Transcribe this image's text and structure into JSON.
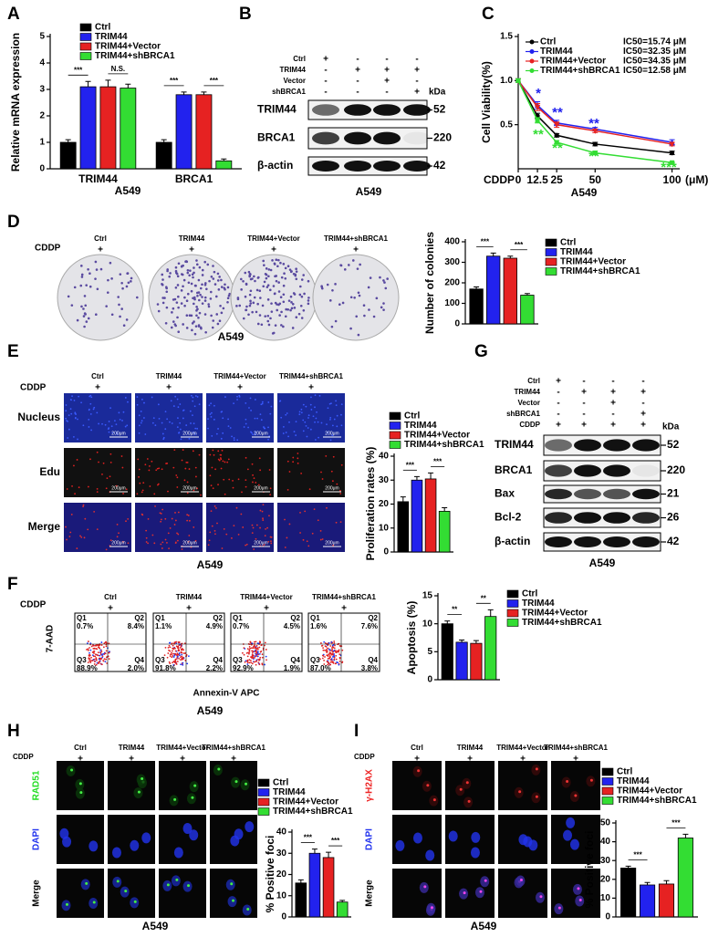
{
  "figure": {
    "panel_labels": [
      "A",
      "B",
      "C",
      "D",
      "E",
      "F",
      "G",
      "H",
      "I"
    ],
    "cell_line": "A549",
    "cddp": "CDDP",
    "plus": "+",
    "groups": [
      "Ctrl",
      "TRIM44",
      "TRIM44+Vector",
      "TRIM44+shBRCA1"
    ],
    "kda": "kDa",
    "blot_B": {
      "conditions": [
        "Ctrl",
        "TRIM44",
        "Vector",
        "shBRCA1"
      ],
      "signs": [
        [
          "+",
          "-",
          "-",
          "-"
        ],
        [
          "-",
          "+",
          "+",
          "+"
        ],
        [
          "-",
          "-",
          "+",
          "-"
        ],
        [
          "-",
          "-",
          "-",
          "+"
        ]
      ],
      "proteins": [
        "TRIM44",
        "BRCA1",
        "β-actin"
      ],
      "sizes": [
        "52",
        "220",
        "42"
      ]
    },
    "blot_G": {
      "conditions": [
        "Ctrl",
        "TRIM44",
        "Vector",
        "shBRCA1",
        "CDDP"
      ],
      "signs": [
        [
          "+",
          "-",
          "-",
          "-"
        ],
        [
          "-",
          "+",
          "+",
          "+"
        ],
        [
          "-",
          "-",
          "+",
          "-"
        ],
        [
          "-",
          "-",
          "-",
          "+"
        ],
        [
          "+",
          "+",
          "+",
          "+"
        ]
      ],
      "proteins": [
        "TRIM44",
        "BRCA1",
        "Bax",
        "Bcl-2",
        "β-actin"
      ],
      "sizes": [
        "52",
        "220",
        "21",
        "26",
        "42"
      ]
    },
    "edu_rows": [
      "Nucleus",
      "Edu",
      "Merge"
    ],
    "scale_bar": "200μm",
    "flow": {
      "y_axis": "7-AAD",
      "x_axis": "Annexin-V APC",
      "quadrants": [
        [
          [
            "Q1",
            "0.7%"
          ],
          [
            "Q2",
            "8.4%"
          ],
          [
            "Q3",
            "88.9%"
          ],
          [
            "Q4",
            "2.0%"
          ]
        ],
        [
          [
            "Q1",
            "1.1%"
          ],
          [
            "Q2",
            "4.9%"
          ],
          [
            "Q3",
            "91.8%"
          ],
          [
            "Q4",
            "2.2%"
          ]
        ],
        [
          [
            "Q1",
            "0.7%"
          ],
          [
            "Q2",
            "4.5%"
          ],
          [
            "Q3",
            "92.9%"
          ],
          [
            "Q4",
            "1.9%"
          ]
        ],
        [
          [
            "Q1",
            "1.6%"
          ],
          [
            "Q2",
            "7.6%"
          ],
          [
            "Q3",
            "87.0%"
          ],
          [
            "Q4",
            "3.8%"
          ]
        ]
      ]
    },
    "if_h_rows": [
      "RAD51",
      "DAPI",
      "Merge"
    ],
    "if_i_rows": [
      "γ-H2AX",
      "DAPI",
      "Merge"
    ]
  },
  "chart_data": [
    {
      "type": "bar",
      "y_label": "Relative mRNA expression",
      "x_label": "A549",
      "categories": [
        "TRIM44",
        "BRCA1"
      ],
      "ylim": [
        0,
        5
      ],
      "yticks": [
        0,
        1,
        2,
        3,
        4,
        5
      ],
      "series": [
        {
          "name": "Ctrl",
          "color": "#000000",
          "values": [
            1,
            1
          ],
          "errors": [
            0.1,
            0.1
          ]
        },
        {
          "name": "TRIM44",
          "color": "#2222ee",
          "values": [
            3.1,
            2.8
          ],
          "errors": [
            0.2,
            0.1
          ]
        },
        {
          "name": "TRIM44+Vector",
          "color": "#e62222",
          "values": [
            3.1,
            2.8
          ],
          "errors": [
            0.25,
            0.1
          ]
        },
        {
          "name": "TRIM44+shBRCA1",
          "color": "#33dd33",
          "values": [
            3.05,
            0.3
          ],
          "errors": [
            0.15,
            0.07
          ]
        }
      ],
      "annotations": [
        "***",
        "N.S.",
        "***",
        "***"
      ]
    },
    {
      "type": "line",
      "y_label": "Cell Viability(%)",
      "x_label": "A549",
      "x_prefix": "CDDP",
      "x_unit": "(μM)",
      "x": [
        0,
        12.5,
        25,
        50,
        100
      ],
      "xlim": [
        0,
        105
      ],
      "xticks": [
        0,
        12.5,
        25,
        50,
        100
      ],
      "ylim": [
        0,
        1.5
      ],
      "yticks": [
        0.5,
        {
          "value": 1,
          "label": "1.0"
        },
        1.5
      ],
      "series": [
        {
          "name": "Ctrl",
          "color": "#000000",
          "marker": "circle",
          "ic50": "IC50=15.74 μM",
          "values": [
            1,
            0.6,
            0.38,
            0.28,
            0.18
          ],
          "errors": [
            0.02,
            0.03,
            0.02,
            0.02,
            0.02
          ]
        },
        {
          "name": "TRIM44",
          "color": "#2222ee",
          "marker": "triangle-up",
          "ic50": "IC50=32.35 μM",
          "values": [
            1,
            0.72,
            0.52,
            0.45,
            0.3
          ],
          "errors": [
            0.02,
            0.04,
            0.03,
            0.02,
            0.03
          ]
        },
        {
          "name": "TRIM44+Vector",
          "color": "#e62222",
          "marker": "triangle-down",
          "ic50": "IC50=34.35 μM",
          "values": [
            1,
            0.7,
            0.5,
            0.43,
            0.28
          ],
          "errors": [
            0.02,
            0.04,
            0.03,
            0.02,
            0.02
          ]
        },
        {
          "name": "TRIM44+shBRCA1",
          "color": "#33dd33",
          "marker": "square",
          "ic50": "IC50=12.58 μM",
          "values": [
            1,
            0.55,
            0.3,
            0.18,
            0.07
          ],
          "errors": [
            0.02,
            0.03,
            0.02,
            0.02,
            0.01
          ]
        }
      ],
      "annotations": [
        {
          "text": "*",
          "color": "#2222ee"
        },
        {
          "text": "**",
          "color": "#2222ee"
        },
        {
          "text": "**",
          "color": "#2222ee"
        },
        {
          "text": "**",
          "color": "#33dd33"
        },
        {
          "text": "**",
          "color": "#33dd33"
        },
        {
          "text": "**",
          "color": "#33dd33"
        },
        {
          "text": "***",
          "color": "#33dd33"
        }
      ]
    },
    {
      "type": "bar",
      "y_label": "Number of colonies",
      "ylim": [
        0,
        400
      ],
      "yticks": [
        0,
        100,
        200,
        300,
        400
      ],
      "series": [
        {
          "name": "Ctrl",
          "color": "#000000",
          "values": [
            170
          ],
          "errors": [
            10
          ]
        },
        {
          "name": "TRIM44",
          "color": "#2222ee",
          "values": [
            330
          ],
          "errors": [
            15
          ]
        },
        {
          "name": "TRIM44+Vector",
          "color": "#e62222",
          "values": [
            320
          ],
          "errors": [
            10
          ]
        },
        {
          "name": "TRIM44+shBRCA1",
          "color": "#33dd33",
          "values": [
            140
          ],
          "errors": [
            8
          ]
        }
      ],
      "annotations": [
        "***",
        "***"
      ]
    },
    {
      "type": "bar",
      "y_label": "Proliferation rates (%)",
      "ylim": [
        0,
        40
      ],
      "yticks": [
        0,
        10,
        20,
        30,
        40
      ],
      "series": [
        {
          "name": "Ctrl",
          "color": "#000000",
          "values": [
            21
          ],
          "errors": [
            2
          ]
        },
        {
          "name": "TRIM44",
          "color": "#2222ee",
          "values": [
            30
          ],
          "errors": [
            1.5
          ]
        },
        {
          "name": "TRIM44+Vector",
          "color": "#e62222",
          "values": [
            30.5
          ],
          "errors": [
            2.5
          ]
        },
        {
          "name": "TRIM44+shBRCA1",
          "color": "#33dd33",
          "values": [
            17
          ],
          "errors": [
            1.5
          ]
        }
      ],
      "annotations": [
        "***",
        "***"
      ]
    },
    {
      "type": "bar",
      "y_label": "Apoptosis (%)",
      "ylim": [
        0,
        15
      ],
      "yticks": [
        0,
        5,
        10,
        15
      ],
      "series": [
        {
          "name": "Ctrl",
          "color": "#000000",
          "values": [
            10
          ],
          "errors": [
            0.5
          ]
        },
        {
          "name": "TRIM44",
          "color": "#2222ee",
          "values": [
            6.7
          ],
          "errors": [
            0.4
          ]
        },
        {
          "name": "TRIM44+Vector",
          "color": "#e62222",
          "values": [
            6.5
          ],
          "errors": [
            0.5
          ]
        },
        {
          "name": "TRIM44+shBRCA1",
          "color": "#33dd33",
          "values": [
            11.3
          ],
          "errors": [
            1.2
          ]
        }
      ],
      "annotations": [
        "**",
        "**"
      ]
    },
    {
      "type": "bar",
      "y_label": "% Positive foci",
      "ylim": [
        0,
        40
      ],
      "yticks": [
        0,
        10,
        20,
        30,
        40
      ],
      "series": [
        {
          "name": "Ctrl",
          "color": "#000000",
          "values": [
            16
          ],
          "errors": [
            1.5
          ]
        },
        {
          "name": "TRIM44",
          "color": "#2222ee",
          "values": [
            30
          ],
          "errors": [
            2
          ]
        },
        {
          "name": "TRIM44+Vector",
          "color": "#e62222",
          "values": [
            28
          ],
          "errors": [
            2.5
          ]
        },
        {
          "name": "TRIM44+shBRCA1",
          "color": "#33dd33",
          "values": [
            7
          ],
          "errors": [
            0.8
          ]
        }
      ],
      "annotations": [
        "***",
        "***"
      ]
    },
    {
      "type": "bar",
      "y_label": "% Positive foci",
      "ylim": [
        0,
        50
      ],
      "yticks": [
        0,
        10,
        20,
        30,
        40,
        50
      ],
      "series": [
        {
          "name": "Ctrl",
          "color": "#000000",
          "values": [
            26
          ],
          "errors": [
            1
          ]
        },
        {
          "name": "TRIM44",
          "color": "#2222ee",
          "values": [
            17
          ],
          "errors": [
            1.3
          ]
        },
        {
          "name": "TRIM44+Vector",
          "color": "#e62222",
          "values": [
            17.5
          ],
          "errors": [
            1.8
          ]
        },
        {
          "name": "TRIM44+shBRCA1",
          "color": "#33dd33",
          "values": [
            42
          ],
          "errors": [
            2
          ]
        }
      ],
      "annotations": [
        "***",
        "***"
      ]
    }
  ]
}
